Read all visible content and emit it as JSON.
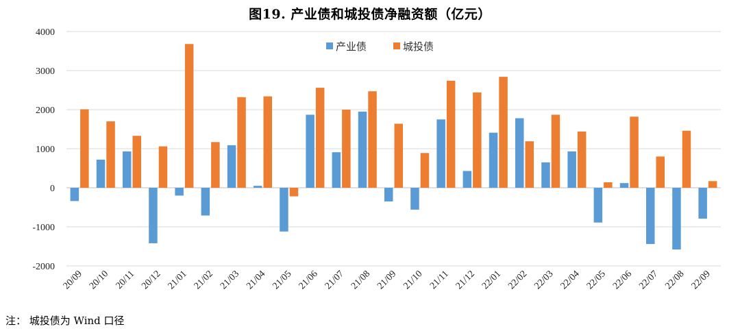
{
  "title": "图19.  产业债和城投债净融资额（亿元）",
  "note": "注：  城投债为 Wind 口径",
  "chart_data": {
    "type": "bar",
    "title": "图19.  产业债和城投债净融资额（亿元）",
    "xlabel": "",
    "ylabel": "",
    "ylim": [
      -2000,
      4000
    ],
    "yticks": [
      4000,
      3000,
      2000,
      1000,
      0,
      -1000,
      -2000
    ],
    "grid": true,
    "legend_position": "top-center",
    "categories": [
      "20/09",
      "20/10",
      "20/11",
      "20/12",
      "21/01",
      "21/02",
      "21/03",
      "21/04",
      "21/05",
      "21/06",
      "21/07",
      "21/08",
      "21/09",
      "21/10",
      "21/11",
      "21/12",
      "22/01",
      "22/02",
      "22/03",
      "22/04",
      "22/05",
      "22/06",
      "22/07",
      "22/08",
      "22/09"
    ],
    "series": [
      {
        "name": "产业债",
        "color": "#5b9bd5",
        "values": [
          -340,
          720,
          930,
          -1420,
          -200,
          -710,
          1090,
          50,
          -1120,
          1870,
          910,
          1950,
          -350,
          -560,
          1750,
          430,
          1410,
          1780,
          650,
          930,
          -890,
          120,
          -1440,
          -1580,
          -790
        ]
      },
      {
        "name": "城投债",
        "color": "#ed7d31",
        "values": [
          2010,
          1700,
          1330,
          1060,
          3680,
          1170,
          2320,
          2340,
          -220,
          2560,
          2000,
          2470,
          1640,
          890,
          2740,
          2440,
          2840,
          1190,
          1870,
          1440,
          140,
          1820,
          800,
          1460,
          170
        ]
      }
    ]
  }
}
